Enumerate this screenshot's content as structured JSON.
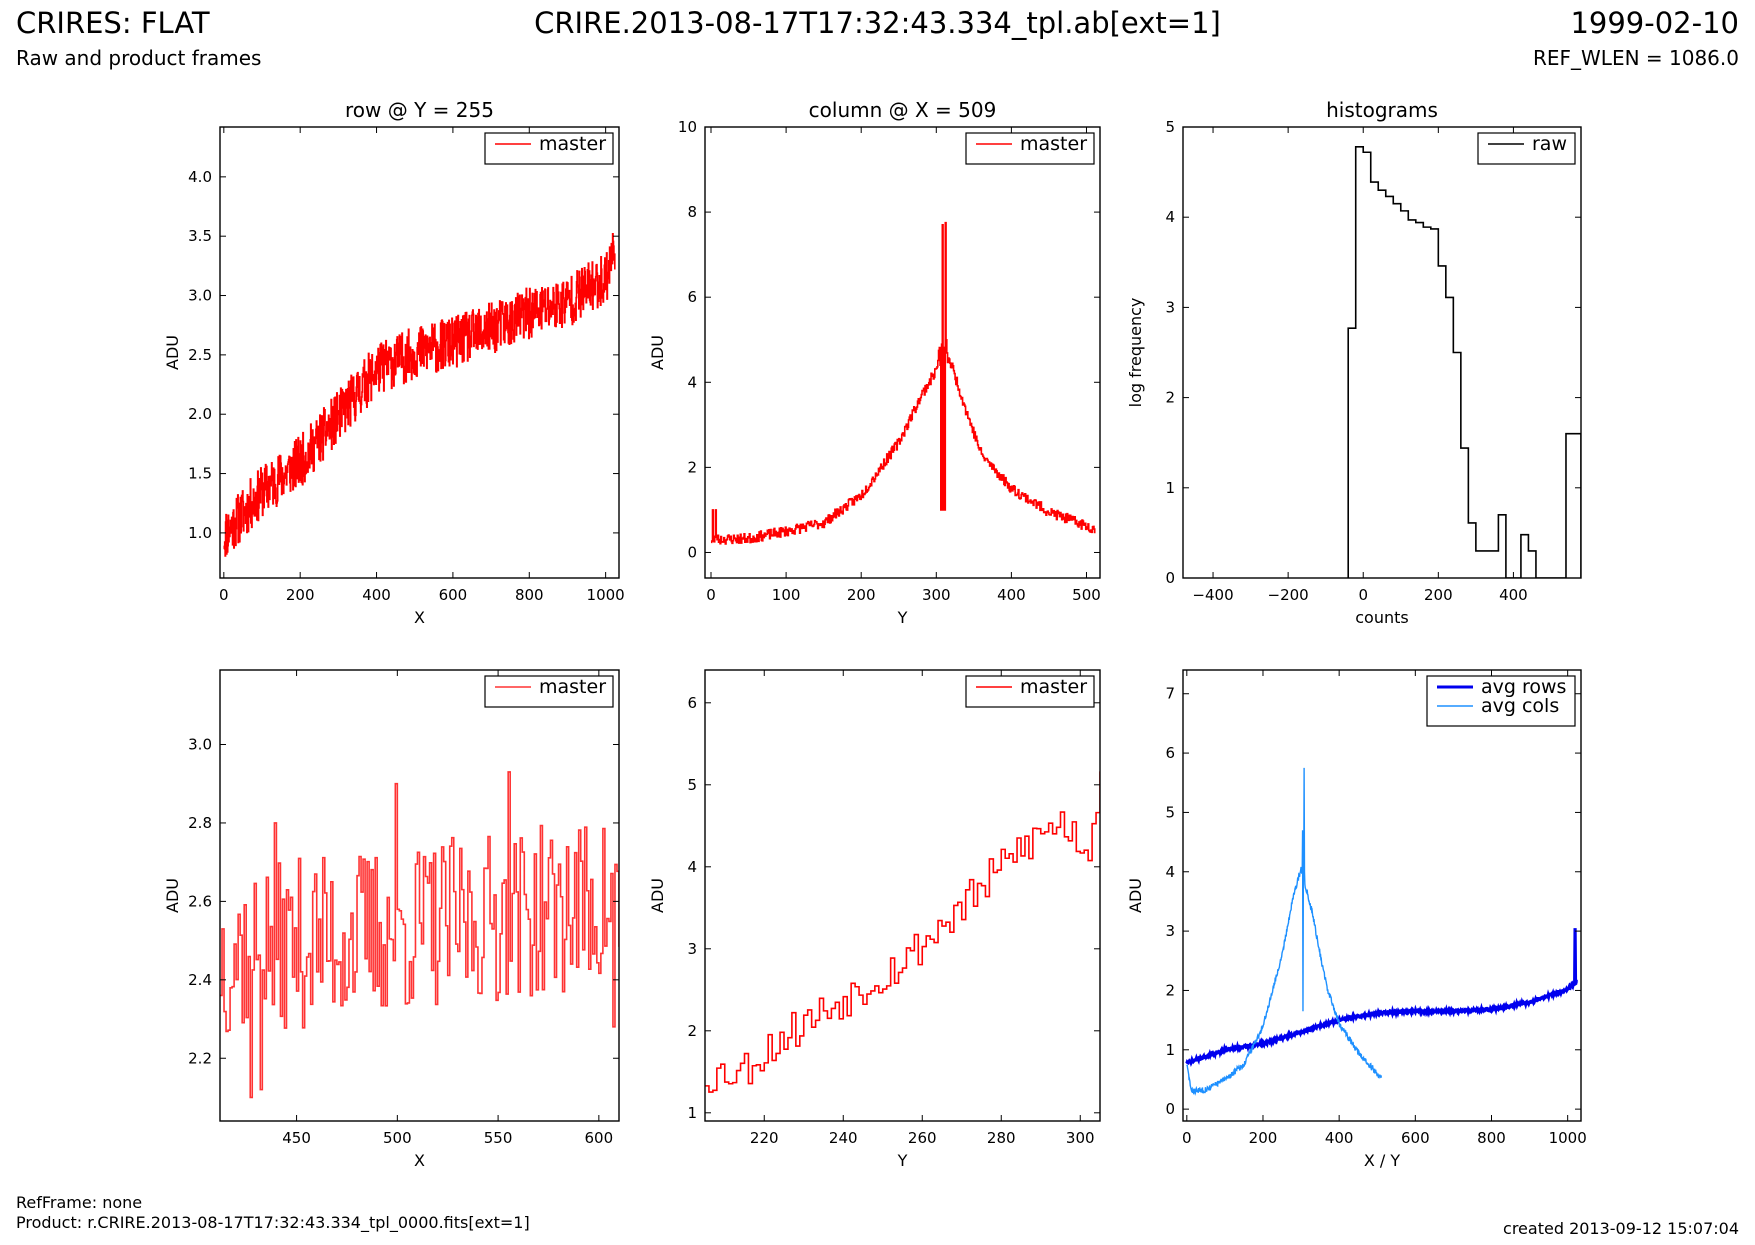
{
  "header": {
    "title": "CRIRES: FLAT",
    "subtitle": "Raw and product frames",
    "center": "CRIRE.2013-08-17T17:32:43.334_tpl.ab[ext=1]",
    "date": "1999-02-10",
    "ref_wlen": "REF_WLEN = 1086.0"
  },
  "footer": {
    "refframe": "RefFrame: none",
    "product": "Product: r.CRIRE.2013-08-17T17:32:43.334_tpl_0000.fits[ext=1]",
    "created": "created 2013-09-12 15:07:04"
  },
  "colors": {
    "master": "#ff0000",
    "master_zoom": "#ff3333",
    "raw": "#000000",
    "avg_rows": "#0000ee",
    "avg_cols": "#1e90ff"
  },
  "chart_data": [
    {
      "id": "row-full",
      "type": "line",
      "title": "row @ Y = 255",
      "xlabel": "X",
      "ylabel": "ADU",
      "xlim": [
        -10,
        1035
      ],
      "ylim": [
        0.62,
        4.42
      ],
      "xticks": [
        0,
        200,
        400,
        600,
        800,
        1000
      ],
      "yticks": [
        "1.0",
        "1.5",
        "2.0",
        "2.5",
        "3.0",
        "3.5",
        "4.0"
      ],
      "legend": "top-right",
      "series": [
        {
          "name": "master",
          "color": "#ff0000",
          "step": true,
          "noise": 0.22,
          "seed": 11,
          "points": [
            [
              0,
              0.98
            ],
            [
              100,
              1.35
            ],
            [
              200,
              1.6
            ],
            [
              300,
              1.98
            ],
            [
              400,
              2.38
            ],
            [
              500,
              2.52
            ],
            [
              600,
              2.6
            ],
            [
              700,
              2.72
            ],
            [
              800,
              2.85
            ],
            [
              900,
              2.95
            ],
            [
              1000,
              3.15
            ],
            [
              1024,
              3.42
            ]
          ]
        }
      ]
    },
    {
      "id": "col-full",
      "type": "line",
      "title": "column @ X = 509",
      "xlabel": "Y",
      "ylabel": "ADU",
      "xlim": [
        -8,
        518
      ],
      "ylim": [
        -0.6,
        10
      ],
      "xticks": [
        0,
        100,
        200,
        300,
        400,
        500
      ],
      "yticks": [
        "0",
        "2",
        "4",
        "6",
        "8",
        "10"
      ],
      "legend": "top-right",
      "series": [
        {
          "name": "master",
          "color": "#ff0000",
          "step": true,
          "noise": 0.12,
          "seed": 23,
          "points": [
            [
              0,
              0.3
            ],
            [
              50,
              0.33
            ],
            [
              100,
              0.5
            ],
            [
              150,
              0.7
            ],
            [
              200,
              1.35
            ],
            [
              250,
              2.6
            ],
            [
              280,
              3.7
            ],
            [
              300,
              4.3
            ],
            [
              305,
              4.9
            ],
            [
              320,
              4.4
            ],
            [
              340,
              3.3
            ],
            [
              360,
              2.3
            ],
            [
              400,
              1.5
            ],
            [
              450,
              0.95
            ],
            [
              511,
              0.55
            ]
          ],
          "spikes": [
            [
              2,
              1.0
            ],
            [
              4,
              0.25
            ],
            [
              6,
              1.0
            ],
            [
              8,
              0.3
            ],
            [
              305,
              4.4
            ],
            [
              306,
              1.0
            ],
            [
              308,
              7.7
            ],
            [
              309,
              1.0
            ],
            [
              311,
              1.0
            ],
            [
              312,
              7.75
            ],
            [
              313,
              5.0
            ]
          ]
        }
      ]
    },
    {
      "id": "histogram",
      "type": "bar",
      "title": "histograms",
      "xlabel": "counts",
      "ylabel": "log frequency",
      "xlim": [
        -480,
        580
      ],
      "ylim": [
        0,
        5
      ],
      "xticks": [
        -400,
        -200,
        0,
        200,
        400
      ],
      "yticks": [
        "0",
        "1",
        "2",
        "3",
        "4",
        "5"
      ],
      "legend": "top-right",
      "series": [
        {
          "name": "raw",
          "color": "#000000",
          "edges": [
            -40,
            -20,
            0,
            20,
            40,
            60,
            80,
            100,
            120,
            140,
            160,
            180,
            200,
            220,
            240,
            260,
            280,
            300,
            320,
            340,
            360,
            380,
            400,
            420,
            440,
            460,
            480,
            500,
            520,
            540,
            560,
            580
          ],
          "values": [
            2.77,
            4.78,
            4.72,
            4.39,
            4.3,
            4.23,
            4.15,
            4.07,
            3.97,
            3.94,
            3.89,
            3.87,
            3.46,
            3.11,
            2.5,
            1.44,
            0.61,
            0.3,
            0.3,
            0.3,
            0.7,
            0,
            0,
            0.48,
            0.3,
            0,
            0,
            0,
            0,
            1.6,
            1.6
          ]
        }
      ]
    },
    {
      "id": "row-zoom",
      "type": "line",
      "xlabel": "X",
      "ylabel": "ADU",
      "xlim": [
        412,
        610
      ],
      "ylim": [
        2.04,
        3.19
      ],
      "xticks": [
        450,
        500,
        550,
        600
      ],
      "yticks": [
        "2.2",
        "2.4",
        "2.6",
        "2.8",
        "3.0"
      ],
      "legend": "top-right",
      "series": [
        {
          "name": "master",
          "color": "#ff3333",
          "step": true,
          "noise": 0.22,
          "seed": 37,
          "points": [
            [
              412,
              2.47
            ],
            [
              610,
              2.6
            ]
          ],
          "spikes": [
            [
              427,
              2.1
            ],
            [
              432,
              2.12
            ],
            [
              439,
              2.8
            ],
            [
              499,
              2.9
            ],
            [
              555,
              2.93
            ],
            [
              607,
              2.28
            ]
          ]
        }
      ]
    },
    {
      "id": "col-zoom",
      "type": "line",
      "xlabel": "Y",
      "ylabel": "ADU",
      "xlim": [
        205,
        305
      ],
      "ylim": [
        0.9,
        6.4
      ],
      "xticks": [
        220,
        240,
        260,
        280,
        300
      ],
      "yticks": [
        "1",
        "2",
        "3",
        "4",
        "5",
        "6"
      ],
      "legend": "top-right",
      "series": [
        {
          "name": "master",
          "color": "#ff0000",
          "step": true,
          "noise": 0.25,
          "seed": 53,
          "points": [
            [
              205,
              1.45
            ],
            [
              215,
              1.55
            ],
            [
              225,
              1.95
            ],
            [
              235,
              2.25
            ],
            [
              245,
              2.55
            ],
            [
              255,
              2.85
            ],
            [
              265,
              3.3
            ],
            [
              275,
              3.75
            ],
            [
              285,
              4.25
            ],
            [
              295,
              4.55
            ],
            [
              302,
              4.2
            ],
            [
              305,
              5.2
            ]
          ]
        }
      ]
    },
    {
      "id": "averages",
      "type": "line",
      "xlabel": "X / Y",
      "ylabel": "ADU",
      "xlim": [
        -10,
        1035
      ],
      "ylim": [
        -0.2,
        7.4
      ],
      "xticks": [
        0,
        200,
        400,
        600,
        800,
        1000
      ],
      "yticks": [
        "0",
        "1",
        "2",
        "3",
        "4",
        "5",
        "6",
        "7"
      ],
      "legend": "top-right",
      "series": [
        {
          "name": "avg rows",
          "color": "#0000ee",
          "step": false,
          "noise": 0.02,
          "seed": 71,
          "width": 3.2,
          "points": [
            [
              0,
              0.78
            ],
            [
              100,
              1.0
            ],
            [
              200,
              1.1
            ],
            [
              300,
              1.3
            ],
            [
              400,
              1.5
            ],
            [
              500,
              1.62
            ],
            [
              600,
              1.65
            ],
            [
              700,
              1.65
            ],
            [
              800,
              1.68
            ],
            [
              900,
              1.8
            ],
            [
              1000,
              2.02
            ],
            [
              1024,
              2.15
            ]
          ],
          "spikes": [
            [
              1020,
              3.05
            ],
            [
              1021,
              2.1
            ]
          ]
        },
        {
          "name": "avg cols",
          "color": "#1e90ff",
          "step": false,
          "noise": 0.05,
          "seed": 83,
          "width": 1.4,
          "points": [
            [
              0,
              0.75
            ],
            [
              12,
              0.3
            ],
            [
              50,
              0.33
            ],
            [
              100,
              0.5
            ],
            [
              150,
              0.75
            ],
            [
              200,
              1.4
            ],
            [
              250,
              2.6
            ],
            [
              280,
              3.6
            ],
            [
              300,
              4.05
            ],
            [
              310,
              3.8
            ],
            [
              330,
              3.3
            ],
            [
              350,
              2.6
            ],
            [
              370,
              2.0
            ],
            [
              400,
              1.45
            ],
            [
              450,
              0.95
            ],
            [
              511,
              0.52
            ]
          ],
          "spikes": [
            [
              304,
              4.7
            ],
            [
              305,
              1.65
            ],
            [
              308,
              5.75
            ],
            [
              309,
              4.0
            ]
          ]
        }
      ]
    }
  ]
}
